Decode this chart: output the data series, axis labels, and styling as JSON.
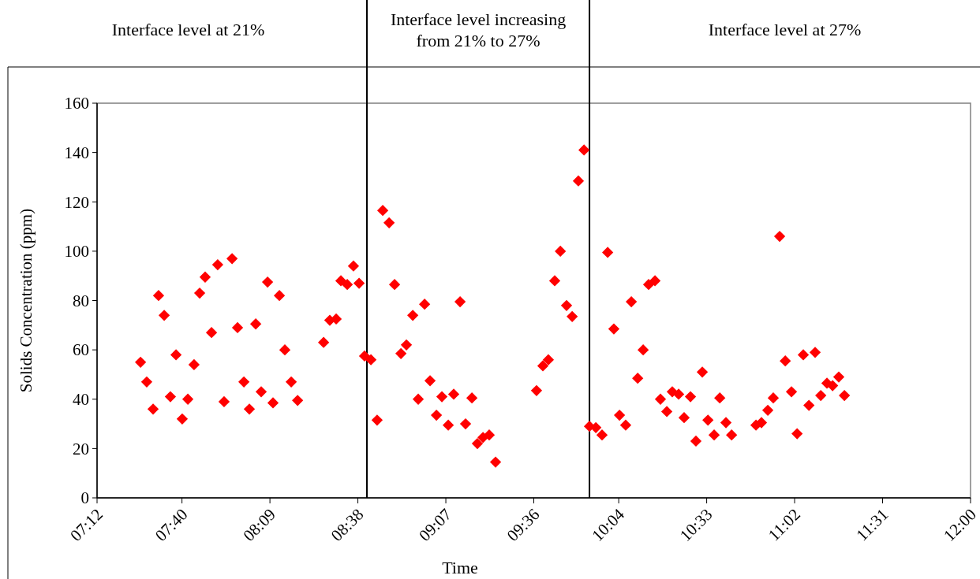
{
  "chart_data": {
    "type": "scatter",
    "xlabel": "Time",
    "ylabel": "Solids Concentration (ppm)",
    "annotations": [
      "Interface level at 21%",
      "Interface level increasing\nfrom 21% to 27%",
      "Interface level at 27%"
    ],
    "series": [
      {
        "color": "#ff0000",
        "x": [
          7.439,
          7.473,
          7.508,
          7.538,
          7.569,
          7.603,
          7.634,
          7.668,
          7.699,
          7.733,
          7.764,
          7.794,
          7.829,
          7.863,
          7.898,
          7.942,
          7.972,
          8.007,
          8.037,
          8.072,
          8.102,
          8.137,
          8.167,
          8.202,
          8.232,
          8.267,
          8.302,
          8.445,
          8.479,
          8.514,
          8.54,
          8.575,
          8.609,
          8.64,
          8.67,
          8.705,
          8.739,
          8.77,
          8.805,
          8.835,
          8.87,
          8.9,
          8.935,
          8.965,
          9.0,
          9.03,
          9.065,
          9.095,
          9.13,
          9.16,
          9.195,
          9.225,
          9.26,
          9.29,
          9.321,
          9.355,
          9.39,
          9.615,
          9.65,
          9.68,
          9.715,
          9.746,
          9.78,
          9.811,
          9.845,
          9.876,
          9.906,
          9.941,
          9.975,
          10.006,
          10.04,
          10.071,
          10.105,
          10.136,
          10.171,
          10.201,
          10.231,
          10.266,
          10.296,
          10.331,
          10.361,
          10.396,
          10.426,
          10.461,
          10.491,
          10.526,
          10.557,
          10.591,
          10.622,
          10.656,
          10.687,
          10.821,
          10.851,
          10.886,
          10.916,
          10.951,
          10.982,
          11.016,
          11.047,
          11.081,
          11.112,
          11.146,
          11.177,
          11.211,
          11.242,
          11.276,
          11.307
        ],
        "values": [
          55,
          47,
          36,
          82,
          74,
          41,
          58,
          32,
          40,
          54,
          83,
          89.5,
          67,
          94.5,
          39,
          97,
          69,
          47,
          36,
          70.5,
          43,
          87.5,
          38.5,
          82,
          60,
          47,
          39.5,
          63,
          72,
          72.5,
          88,
          86.5,
          94,
          87,
          57.5,
          56,
          31.5,
          116.5,
          111.5,
          86.5,
          58.5,
          62,
          74,
          40,
          78.5,
          47.5,
          33.5,
          41,
          29.5,
          42,
          79.5,
          30,
          40.5,
          22,
          24.5,
          25.5,
          14.5,
          43.5,
          53.5,
          56,
          88,
          100,
          78,
          73.5,
          128.5,
          141,
          29,
          28.5,
          25.5,
          99.5,
          68.5,
          33.5,
          29.5,
          79.5,
          48.5,
          60,
          86.5,
          88,
          40,
          35,
          43,
          42,
          32.5,
          41,
          23,
          51,
          31.5,
          25.5,
          40.5,
          30.5,
          25.5,
          29.5,
          30.5,
          35.5,
          40.5,
          106,
          55.5,
          43,
          26,
          58,
          37.5,
          59,
          41.5,
          46.5,
          45.5,
          49,
          41.5
        ]
      }
    ],
    "marker": "diamond",
    "grid": false,
    "xlim": [
      7.2,
      12
    ],
    "xticks": [
      {
        "value": 7.2,
        "label": "07:12"
      },
      {
        "value": 7.6667,
        "label": "07:40"
      },
      {
        "value": 8.15,
        "label": "08:09"
      },
      {
        "value": 8.6333,
        "label": "08:38"
      },
      {
        "value": 9.1167,
        "label": "09:07"
      },
      {
        "value": 9.6,
        "label": "09:36"
      },
      {
        "value": 10.0667,
        "label": "10:04"
      },
      {
        "value": 10.55,
        "label": "10:33"
      },
      {
        "value": 11.0333,
        "label": "11:02"
      },
      {
        "value": 11.5167,
        "label": "11:31"
      },
      {
        "value": 12,
        "label": "12:00"
      }
    ],
    "ylim": [
      0,
      160
    ],
    "yticks": [
      0,
      20,
      40,
      60,
      80,
      100,
      120,
      140,
      160
    ],
    "ref_lines": [
      {
        "axis": "x",
        "value": 8.683,
        "color": "#000000"
      },
      {
        "axis": "x",
        "value": 9.906,
        "color": "#000000"
      }
    ]
  }
}
